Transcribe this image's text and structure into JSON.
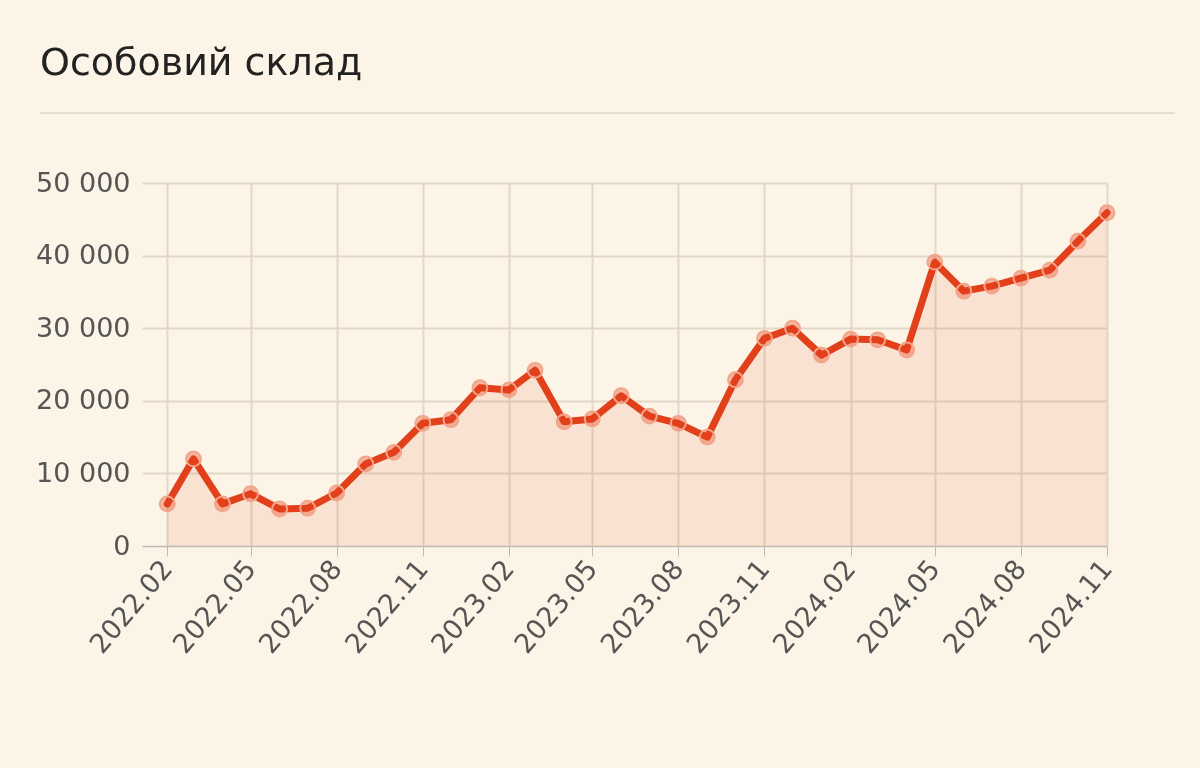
{
  "chart_data": {
    "type": "area",
    "title": "Особовий склад",
    "x": [
      "2022-02",
      "2022-03",
      "2022-04",
      "2022-05",
      "2022-06",
      "2022-07",
      "2022-08",
      "2022-09",
      "2022-10",
      "2022-11",
      "2022-12",
      "2023-01",
      "2023-02",
      "2023-03",
      "2023-04",
      "2023-05",
      "2023-06",
      "2023-07",
      "2023-08",
      "2023-09",
      "2023-10",
      "2023-11",
      "2023-12",
      "2024-01",
      "2024-02",
      "2024-03",
      "2024-04",
      "2024-05",
      "2024-06",
      "2024-07",
      "2024-08",
      "2024-09",
      "2024-10",
      "2024-11"
    ],
    "series": [
      {
        "color": "#e2401b",
        "values": [
          5800,
          12000,
          5800,
          7200,
          5100,
          5200,
          7300,
          11300,
          12900,
          16900,
          17400,
          21800,
          21500,
          24200,
          17100,
          17500,
          20700,
          17900,
          16900,
          15000,
          22900,
          28600,
          30000,
          26300,
          28500,
          28400,
          27000,
          39100,
          35100,
          35800,
          36900,
          38000,
          42000,
          45900
        ]
      }
    ],
    "xlim": [
      "2022-01-05",
      "2024-11"
    ],
    "xticks": [
      {
        "value": "2022-02",
        "label": "2022.02"
      },
      {
        "value": "2022-05",
        "label": "2022.05"
      },
      {
        "value": "2022-08",
        "label": "2022.08"
      },
      {
        "value": "2022-11",
        "label": "2022.11"
      },
      {
        "value": "2023-02",
        "label": "2023.02"
      },
      {
        "value": "2023-05",
        "label": "2023.05"
      },
      {
        "value": "2023-08",
        "label": "2023.08"
      },
      {
        "value": "2023-11",
        "label": "2023.11"
      },
      {
        "value": "2024-02",
        "label": "2024.02"
      },
      {
        "value": "2024-05",
        "label": "2024.05"
      },
      {
        "value": "2024-08",
        "label": "2024.08"
      },
      {
        "value": "2024-11",
        "label": "2024.11"
      }
    ],
    "ylim": [
      0,
      50000
    ],
    "yticks": [
      {
        "value": 0,
        "label": "0"
      },
      {
        "value": 10000,
        "label": "10 000"
      },
      {
        "value": 20000,
        "label": "20 000"
      },
      {
        "value": 30000,
        "label": "30 000"
      },
      {
        "value": 40000,
        "label": "40 000"
      },
      {
        "value": 50000,
        "label": "50 000"
      }
    ],
    "grid": true,
    "marker": "circle",
    "line_style": "solid"
  }
}
